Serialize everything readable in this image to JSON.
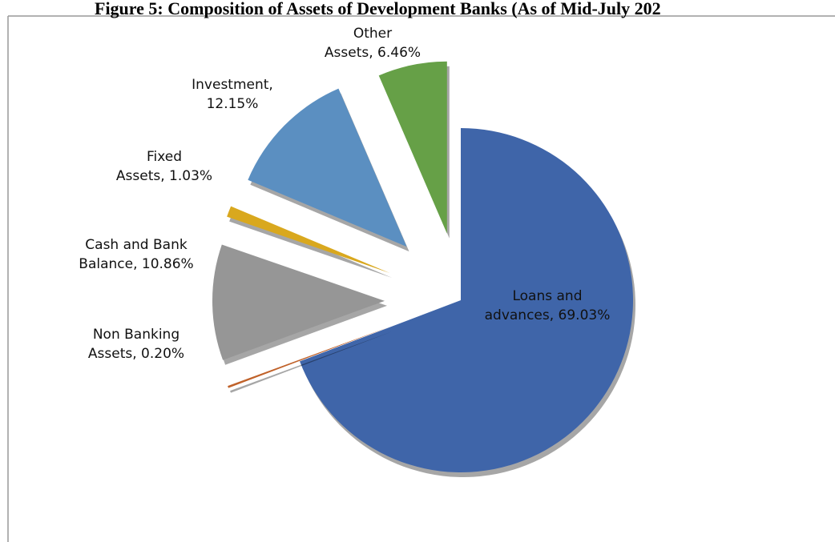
{
  "chart_data": {
    "type": "pie",
    "title": "Figure 5: Composition of Assets of Development Banks (As of Mid-July 202",
    "values": [
      69.03,
      0.2,
      10.86,
      1.03,
      12.15,
      6.46
    ],
    "value_labels": [
      [
        "Loans and",
        "advances, 69.03%"
      ],
      [
        "Non Banking",
        "Assets, 0.20%"
      ],
      [
        "Cash and Bank",
        "Balance, 10.86%"
      ],
      [
        "Fixed",
        "Assets, 1.03%"
      ],
      [
        "Investment,",
        "12.15%"
      ],
      [
        "Other",
        "Assets, 6.46%"
      ]
    ],
    "colors": [
      "#3f65a9",
      "#c0622a",
      "#969696",
      "#d9a81e",
      "#5b8fc1",
      "#66a047"
    ]
  }
}
